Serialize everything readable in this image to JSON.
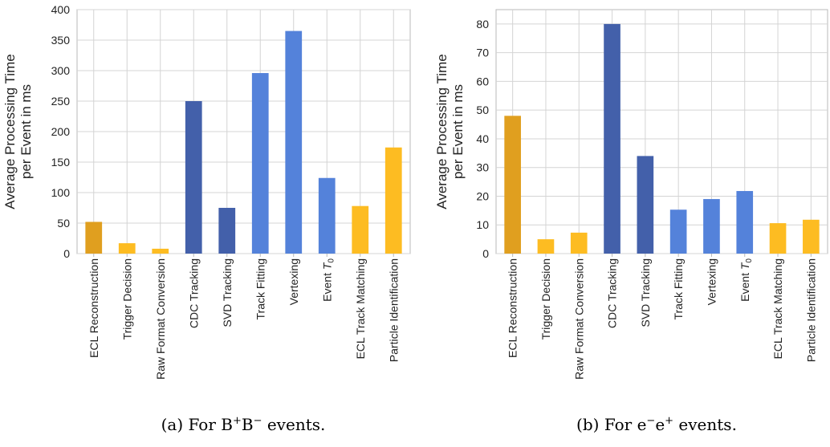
{
  "colors": {
    "grid": "#d4d4d4",
    "axis": "#b8b8b8",
    "text": "#222222",
    "ecl_orange": "#E09F1F",
    "light_yellow": "#FDBC22",
    "dark_blue": "#4360AA",
    "mid_blue": "#5482DA"
  },
  "chart_data": [
    {
      "type": "bar",
      "ylabel": [
        "Average Processing Time",
        "per Event in ms"
      ],
      "ylim": [
        0,
        400
      ],
      "yticks": [
        0,
        50,
        100,
        150,
        200,
        250,
        300,
        350,
        400
      ],
      "grid": true,
      "categories": [
        {
          "text": "ECL Reconstruction"
        },
        {
          "text": "Trigger Decision"
        },
        {
          "text": "Raw Format Conversion"
        },
        {
          "text": "CDC Tracking"
        },
        {
          "text": "SVD Tracking"
        },
        {
          "text": "Track Fitting"
        },
        {
          "text": "Vertexing"
        },
        {
          "text": "Event ",
          "italic": "T",
          "sub": "0"
        },
        {
          "text": "ECL Track Matching"
        },
        {
          "text": "Particle Identification"
        }
      ],
      "values": [
        52,
        17,
        8,
        250,
        75,
        296,
        365,
        124,
        78,
        174
      ],
      "bar_colors": [
        "#E09F1F",
        "#FDBC22",
        "#FDBC22",
        "#4360AA",
        "#4360AA",
        "#5482DA",
        "#5482DA",
        "#5482DA",
        "#FDBC22",
        "#FDBC22"
      ],
      "caption": {
        "prefix": "(a) For ",
        "b1": "B",
        "s1": "+",
        "b2": "B",
        "s2": "−",
        "suffix": " events."
      }
    },
    {
      "type": "bar",
      "ylabel": [
        "Average Processing Time",
        "per Event in ms"
      ],
      "ylim": [
        0,
        85
      ],
      "yticks": [
        0,
        10,
        20,
        30,
        40,
        50,
        60,
        70,
        80
      ],
      "grid": true,
      "categories": [
        {
          "text": "ECL Reconstruction"
        },
        {
          "text": "Trigger Decision"
        },
        {
          "text": "Raw Format Conversion"
        },
        {
          "text": "CDC Tracking"
        },
        {
          "text": "SVD Tracking"
        },
        {
          "text": "Track Fitting"
        },
        {
          "text": "Vertexing"
        },
        {
          "text": "Event ",
          "italic": "T",
          "sub": "0"
        },
        {
          "text": "ECL Track Matching"
        },
        {
          "text": "Particle Identification"
        }
      ],
      "values": [
        48,
        5,
        7.3,
        80,
        34,
        15.3,
        19,
        21.8,
        10.6,
        11.8
      ],
      "bar_colors": [
        "#E09F1F",
        "#FDBC22",
        "#FDBC22",
        "#4360AA",
        "#4360AA",
        "#5482DA",
        "#5482DA",
        "#5482DA",
        "#FDBC22",
        "#FDBC22"
      ],
      "caption": {
        "prefix": "(b) For ",
        "b1": "e",
        "s1": "−",
        "b2": "e",
        "s2": "+",
        "suffix": " events."
      }
    }
  ]
}
